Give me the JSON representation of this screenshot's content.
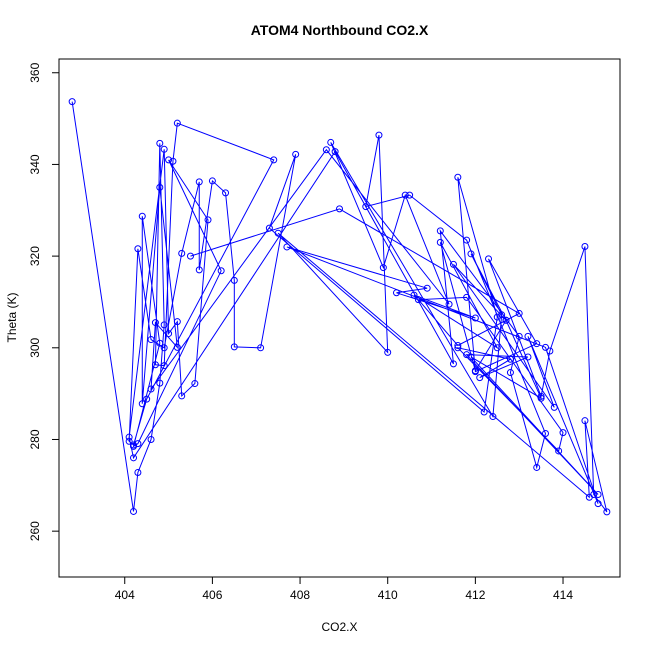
{
  "chart_data": {
    "type": "line",
    "title": "ATOM4 Northbound CO2.X",
    "xlabel": "CO2.X",
    "ylabel": "Theta (K)",
    "xlim": [
      402.5,
      415.3
    ],
    "ylim": [
      250,
      363
    ],
    "x_ticks": [
      404,
      406,
      408,
      410,
      412,
      414
    ],
    "y_ticks": [
      260,
      280,
      300,
      320,
      340,
      360
    ],
    "markers": "open circles",
    "grid": false,
    "legend": "none",
    "color": "#0000ff",
    "series": [
      {
        "points": [
          [
            402.8,
            353.7
          ],
          [
            404.2,
            264.3
          ],
          [
            404.3,
            272.8
          ],
          [
            404.6,
            280.0
          ],
          [
            404.8,
            292.3
          ],
          [
            404.9,
            305.0
          ],
          [
            404.8,
            344.6
          ],
          [
            404.7,
            296.3
          ],
          [
            404.9,
            296.1
          ],
          [
            405.1,
            340.7
          ],
          [
            405.2,
            349.0
          ],
          [
            407.4,
            341.0
          ],
          [
            404.5,
            288.8
          ],
          [
            404.2,
            278.8
          ],
          [
            404.1,
            279.6
          ],
          [
            404.3,
            321.6
          ],
          [
            404.6,
            301.8
          ],
          [
            404.9,
            300.0
          ],
          [
            405.3,
            320.6
          ],
          [
            405.7,
            336.2
          ],
          [
            405.7,
            317.0
          ],
          [
            406.0,
            336.4
          ],
          [
            406.3,
            333.8
          ],
          [
            406.5,
            314.7
          ],
          [
            406.5,
            300.2
          ],
          [
            407.1,
            300.0
          ],
          [
            407.9,
            342.2
          ],
          [
            407.3,
            326.1
          ],
          [
            412.2,
            286.0
          ],
          [
            412.5,
            306.7
          ],
          [
            411.6,
            337.2
          ],
          [
            412.0,
            294.8
          ],
          [
            413.4,
            300.9
          ],
          [
            412.3,
            319.4
          ],
          [
            413.5,
            289.4
          ],
          [
            413.7,
            299.3
          ],
          [
            414.5,
            322.1
          ],
          [
            414.7,
            268.0
          ],
          [
            415.0,
            264.2
          ],
          [
            414.5,
            284.1
          ],
          [
            414.6,
            267.4
          ],
          [
            407.5,
            325.0
          ],
          [
            410.0,
            299.0
          ],
          [
            409.8,
            346.4
          ],
          [
            409.5,
            330.8
          ],
          [
            410.5,
            333.3
          ],
          [
            411.8,
            323.5
          ],
          [
            413.6,
            281.3
          ],
          [
            413.4,
            273.9
          ],
          [
            412.8,
            294.6
          ],
          [
            413.0,
            302.5
          ],
          [
            411.2,
            325.5
          ],
          [
            411.5,
            296.5
          ],
          [
            408.8,
            342.8
          ],
          [
            404.2,
            276.0
          ],
          [
            404.1,
            280.5
          ],
          [
            404.9,
            343.3
          ],
          [
            405.0,
            303.1
          ],
          [
            405.2,
            305.7
          ],
          [
            405.3,
            289.5
          ],
          [
            405.6,
            292.2
          ],
          [
            405.9,
            327.9
          ],
          [
            405.0,
            341.0
          ],
          [
            406.2,
            316.8
          ],
          [
            404.3,
            279.1
          ],
          [
            404.2,
            278.5
          ],
          [
            404.8,
            301.0
          ],
          [
            404.4,
            328.7
          ],
          [
            404.4,
            287.8
          ],
          [
            404.8,
            335.0
          ],
          [
            405.2,
            300.1
          ],
          [
            404.7,
            305.5
          ],
          [
            404.6,
            291.0
          ],
          [
            408.6,
            343.2
          ],
          [
            411.4,
            309.5
          ],
          [
            410.4,
            333.3
          ],
          [
            409.9,
            317.5
          ],
          [
            408.7,
            344.8
          ],
          [
            412.4,
            285.0
          ],
          [
            412.6,
            307.2
          ],
          [
            411.9,
            320.5
          ],
          [
            412.7,
            306.0
          ],
          [
            411.5,
            318.2
          ],
          [
            413.8,
            287.0
          ],
          [
            413.2,
            302.5
          ],
          [
            414.8,
            266.0
          ],
          [
            413.6,
            300.1
          ],
          [
            407.7,
            322.0
          ],
          [
            410.9,
            313.0
          ],
          [
            410.2,
            312.0
          ],
          [
            412.0,
            306.5
          ],
          [
            410.6,
            311.5
          ],
          [
            412.5,
            300.0
          ],
          [
            411.2,
            323.0
          ],
          [
            412.0,
            295.0
          ],
          [
            412.7,
            306.0
          ],
          [
            413.5,
            289.0
          ],
          [
            411.9,
            298.0
          ],
          [
            414.8,
            268.0
          ],
          [
            411.8,
            298.5
          ],
          [
            413.2,
            298.0
          ],
          [
            412.1,
            293.5
          ],
          [
            412.8,
            297.5
          ],
          [
            411.6,
            300.0
          ],
          [
            413.9,
            277.5
          ],
          [
            414.0,
            281.5
          ],
          [
            411.8,
            311.0
          ],
          [
            410.7,
            310.5
          ],
          [
            411.6,
            300.5
          ],
          [
            413.0,
            307.5
          ],
          [
            408.9,
            330.3
          ],
          [
            405.5,
            320.0
          ]
        ]
      }
    ]
  }
}
